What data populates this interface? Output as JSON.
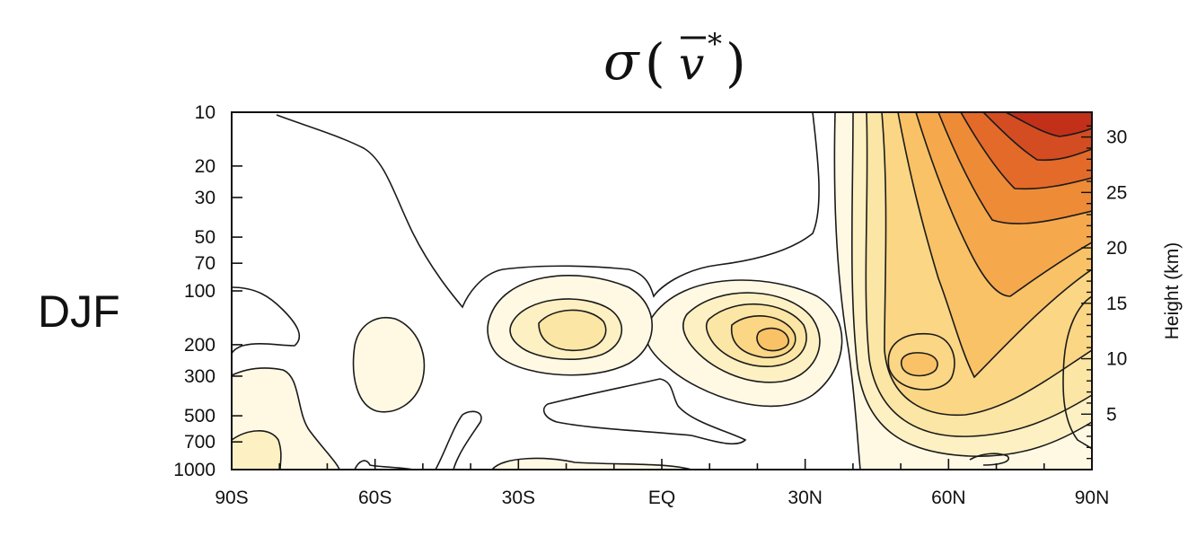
{
  "title": "σ(v̄*)",
  "title_parts": {
    "sigma": "σ",
    "open": "(",
    "var": "v",
    "star": "*",
    "close": ")"
  },
  "season": "DJF",
  "chart_data": {
    "type": "heatmap",
    "subtype": "filled-contour latitude-pressure section",
    "title": "σ(v̄*)",
    "panel_label": "DJF",
    "x_axis": {
      "label": "",
      "range": [
        -90,
        90
      ],
      "ticks": [
        -90,
        -60,
        -30,
        0,
        30,
        60,
        90
      ],
      "tick_labels": [
        "90S",
        "60S",
        "30S",
        "EQ",
        "30N",
        "60N",
        "90N"
      ]
    },
    "y_axis_left": {
      "label": "",
      "scale": "log",
      "inverted": true,
      "range": [
        1000,
        10
      ],
      "ticks": [
        10,
        20,
        30,
        50,
        70,
        100,
        200,
        300,
        500,
        700,
        1000
      ],
      "tick_labels": [
        "10",
        "20",
        "30",
        "50",
        "70",
        "100",
        "200",
        "300",
        "500",
        "700",
        "1000"
      ]
    },
    "y_axis_right": {
      "label": "Height (km)",
      "ticks": [
        5,
        10,
        15,
        20,
        25,
        30
      ],
      "tick_labels": [
        "5",
        "10",
        "15",
        "20",
        "25",
        "30"
      ]
    },
    "colormap": [
      "#ffffff",
      "#fff9e4",
      "#fdf0c3",
      "#fce6a5",
      "#fbd685",
      "#f9c266",
      "#f5a94c",
      "#ee8b37",
      "#e46a2a",
      "#d44c21",
      "#c2301a"
    ],
    "features": [
      {
        "desc": "maximum",
        "lat": 80,
        "p": 10,
        "level": "highest"
      },
      {
        "desc": "secondary maximum",
        "lat": 53,
        "p": 270,
        "level": "moderate"
      },
      {
        "desc": "subtropical maximum",
        "lat": 21,
        "p": 190,
        "level": "low"
      },
      {
        "desc": "subtropical maximum",
        "lat": -18,
        "p": 170,
        "level": "low"
      }
    ]
  },
  "colors": {
    "axis": "#111111",
    "contour": "#1a1a1a",
    "low": "#fff9e4",
    "high": "#c2301a"
  }
}
